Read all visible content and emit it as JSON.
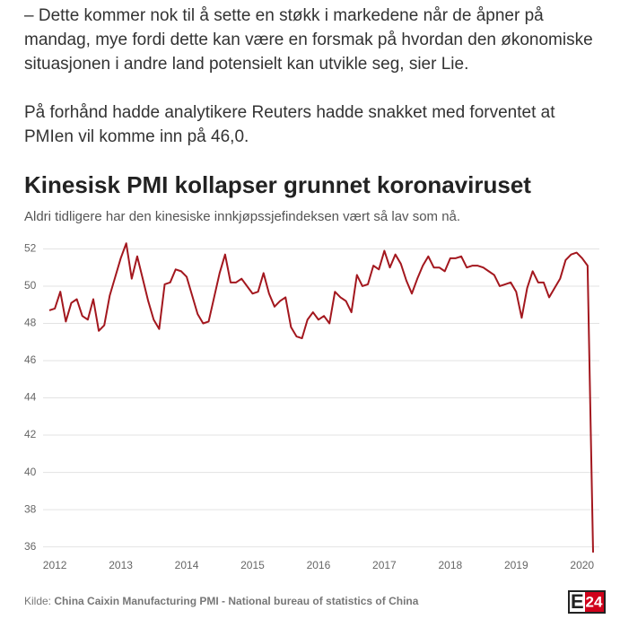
{
  "article": {
    "paragraphs": [
      "– Dette kommer nok til å sette en støkk i markedene når de åpner på mandag, mye fordi dette kan være en forsmak på hvordan den økonomiske situasjonen i andre land potensielt kan utvikle seg, sier Lie.",
      "På forhånd hadde analytikere Reuters hadde snakket med forventet at PMIen vil komme inn på 46,0."
    ]
  },
  "chart_data": {
    "type": "line",
    "title": "Kinesisk PMI kollapser grunnet koronaviruset",
    "subtitle": "Aldri tidligere har den kinesiske innkjøpssjefindeksen vært så lav som nå.",
    "categories": [
      null,
      "2012",
      null,
      null,
      null,
      null,
      null,
      null,
      null,
      null,
      null,
      null,
      null,
      "2013",
      null,
      null,
      null,
      null,
      null,
      null,
      null,
      null,
      null,
      null,
      null,
      "2014",
      null,
      null,
      null,
      null,
      null,
      null,
      null,
      null,
      null,
      null,
      null,
      "2015",
      null,
      null,
      null,
      null,
      null,
      null,
      null,
      null,
      null,
      null,
      null,
      "2016",
      null,
      null,
      null,
      null,
      null,
      null,
      null,
      null,
      null,
      null,
      null,
      "2017",
      null,
      null,
      null,
      null,
      null,
      null,
      null,
      null,
      null,
      null,
      null,
      "2018",
      null,
      null,
      null,
      null,
      null,
      null,
      null,
      null,
      null,
      null,
      null,
      "2019",
      null,
      null,
      null,
      null,
      null,
      null,
      null,
      null,
      null,
      null,
      null,
      "2020",
      null,
      null
    ],
    "series": [
      {
        "name": "PMI",
        "color": "#a3171e",
        "values": [
          48.7,
          48.8,
          49.7,
          48.1,
          49.1,
          49.3,
          48.4,
          48.2,
          49.3,
          47.6,
          47.9,
          49.5,
          50.5,
          51.5,
          52.3,
          50.4,
          51.6,
          50.4,
          49.2,
          48.2,
          47.7,
          50.1,
          50.2,
          50.9,
          50.8,
          50.5,
          49.5,
          48.5,
          48.0,
          48.1,
          49.4,
          50.7,
          51.7,
          50.2,
          50.2,
          50.4,
          50.0,
          49.6,
          49.7,
          50.7,
          49.6,
          48.9,
          49.2,
          49.4,
          47.8,
          47.3,
          47.2,
          48.2,
          48.6,
          48.2,
          48.4,
          48.0,
          49.7,
          49.4,
          49.2,
          48.6,
          50.6,
          50.0,
          50.1,
          51.1,
          50.9,
          51.9,
          51.0,
          51.7,
          51.2,
          50.3,
          49.6,
          50.4,
          51.1,
          51.6,
          51.0,
          51.0,
          50.8,
          51.5,
          51.5,
          51.6,
          51.0,
          51.1,
          51.1,
          51.0,
          50.8,
          50.6,
          50.0,
          50.1,
          50.2,
          49.7,
          48.3,
          49.9,
          50.8,
          50.2,
          50.2,
          49.4,
          49.9,
          50.4,
          51.4,
          51.7,
          51.8,
          51.5,
          51.1,
          35.7
        ]
      }
    ],
    "ylim": [
      35.5,
      52.6
    ],
    "yticks": [
      36,
      38,
      40,
      42,
      44,
      46,
      48,
      50,
      52
    ],
    "grid": true,
    "source_label": "Kilde:",
    "source": "China Caixin Manufacturing PMI - National bureau of statistics of China",
    "logo_e": "E",
    "logo_num": "24"
  }
}
